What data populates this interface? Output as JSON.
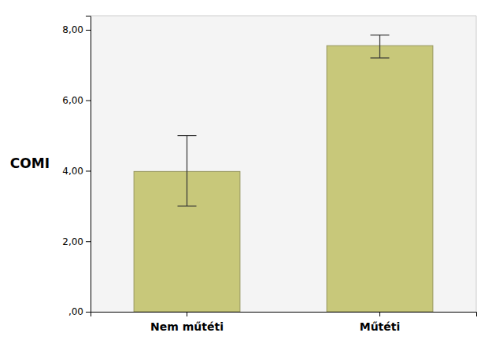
{
  "chart_data": {
    "type": "bar",
    "categories": [
      "Nem műtéti",
      "Műtéti"
    ],
    "values": [
      3.98,
      7.55
    ],
    "errors_upper": [
      1.02,
      0.3
    ],
    "errors_lower": [
      0.98,
      0.35
    ],
    "color": "#c8c87a",
    "ylabel": "COMI",
    "ylim": [
      0,
      8.4
    ],
    "yticks": [
      {
        "value": 0,
        "label": ",00"
      },
      {
        "value": 2,
        "label": "2,00"
      },
      {
        "value": 4,
        "label": "4,00"
      },
      {
        "value": 6,
        "label": "6,00"
      },
      {
        "value": 8,
        "label": "8,00"
      }
    ],
    "grid": false
  }
}
